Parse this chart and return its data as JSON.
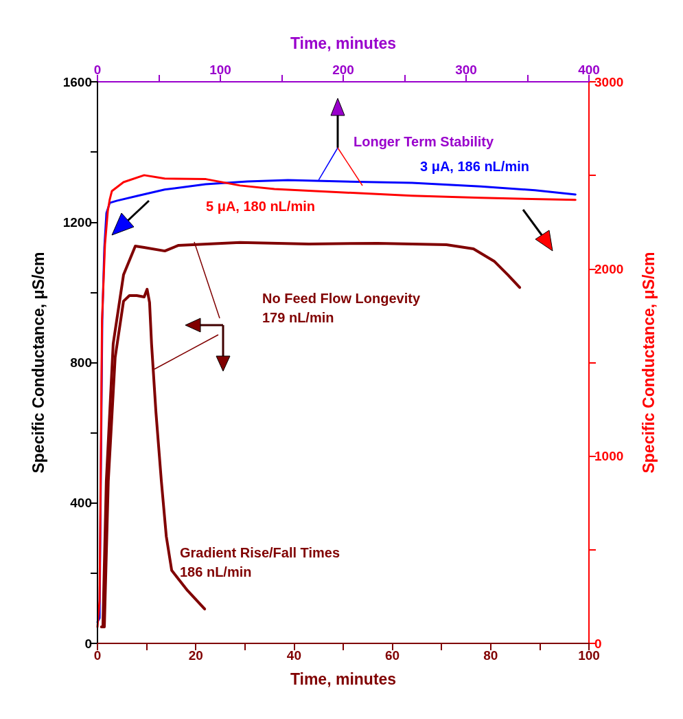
{
  "chart_data": [
    {
      "type": "line",
      "xlabel": "Time, minutes",
      "ylabel": "Specific Conductance, μS/cm",
      "y2label": "Specific Conductance, μS/cm",
      "xlim": [
        0,
        400
      ],
      "xticks": [
        0,
        {
          "value": 50,
          "label": null
        },
        100,
        {
          "value": 150,
          "label": null
        },
        200,
        {
          "value": 250,
          "label": null
        },
        300,
        {
          "value": 350,
          "label": null
        },
        400
      ],
      "ylim": [
        0,
        1600
      ],
      "yticks": [
        0,
        {
          "value": 200,
          "label": null
        },
        400,
        {
          "value": 600,
          "label": null
        },
        800,
        {
          "value": 1000,
          "label": null
        },
        1200,
        {
          "value": 1400,
          "label": null
        },
        1600
      ],
      "y2lim": [
        0,
        3000
      ],
      "y2ticks": [
        0,
        {
          "value": 500,
          "label": null
        },
        1000,
        {
          "value": 1500,
          "label": null
        },
        2000,
        {
          "value": 2500,
          "label": null
        },
        3000
      ],
      "grid": false,
      "legend": false,
      "marker": "none",
      "line_style": "solid",
      "annotations": [
        {
          "text": "Longer Term Stability",
          "x": 180,
          "y": 1320
        }
      ],
      "series": [
        {
          "name": "3 μA, 186 nL/min",
          "color": "#0000ff",
          "x": [
            0,
            1.7,
            3.9,
            5.6,
            7.3,
            10,
            15.6,
            32.4,
            54.7,
            88,
            122,
            155,
            200,
            256,
            312,
            356,
            389
          ],
          "values": [
            61,
            72,
            920,
            1128,
            1226,
            1255,
            1261,
            1275,
            1293,
            1308,
            1316,
            1320,
            1316,
            1312,
            1302,
            1291,
            1279
          ]
        },
        {
          "name": "5 μA, 180 nL/min",
          "color": "#ff0000",
          "axis": "y2",
          "x": [
            0,
            1.7,
            3.7,
            6.1,
            8.4,
            10,
            11.7,
            21.2,
            38,
            54.7,
            88.3,
            116,
            144,
            200,
            256,
            312,
            389
          ],
          "values": [
            88,
            228,
            1726,
            2130,
            2310,
            2372,
            2416,
            2464,
            2501,
            2483,
            2480,
            2446,
            2427,
            2409,
            2391,
            2380,
            2369
          ]
        }
      ]
    },
    {
      "type": "line",
      "xlabel": "Time, minutes",
      "xlim": [
        0,
        100
      ],
      "xticks": [
        0,
        {
          "value": 10,
          "label": null
        },
        20,
        {
          "value": 30,
          "label": null
        },
        40,
        {
          "value": 50,
          "label": null
        },
        60,
        {
          "value": 70,
          "label": null
        },
        80,
        {
          "value": 90,
          "label": null
        },
        100
      ],
      "ylim": [
        0,
        1600
      ],
      "yticks": [
        0,
        {
          "value": 200,
          "label": null
        },
        400,
        {
          "value": 600,
          "label": null
        },
        800,
        {
          "value": 1000,
          "label": null
        },
        1200,
        {
          "value": 1400,
          "label": null
        },
        1600
      ],
      "tick_labels": "x",
      "grid": false,
      "legend": false,
      "marker": "none",
      "line_style": "solid",
      "annotations": [
        "No Feed Flow Longevity\n179 nL/min",
        "Gradient Rise/Fall Times\n186 nL/min"
      ],
      "series": [
        {
          "color": "#800000",
          "x": [
            1.1,
            1.8,
            3.2,
            5.3,
            7.7,
            9.5,
            13.7,
            16.5,
            29,
            43,
            57,
            71,
            76.5,
            80.7,
            83.5,
            85.9
          ],
          "values": [
            47,
            462,
            854,
            1050,
            1132,
            1128,
            1118,
            1134,
            1142,
            1138,
            1140,
            1136,
            1124,
            1089,
            1050,
            1014
          ]
        },
        {
          "color": "#800000",
          "x": [
            0.8,
            1.4,
            2.2,
            3.6,
            5.3,
            6.5,
            8,
            9.5,
            10.1,
            10.6,
            11,
            11.9,
            13,
            14,
            15.1,
            18.3,
            21.8
          ],
          "values": [
            47,
            47,
            462,
            815,
            975,
            991,
            991,
            987,
            1009,
            971,
            854,
            658,
            462,
            305,
            208,
            151,
            98
          ]
        }
      ]
    }
  ]
}
